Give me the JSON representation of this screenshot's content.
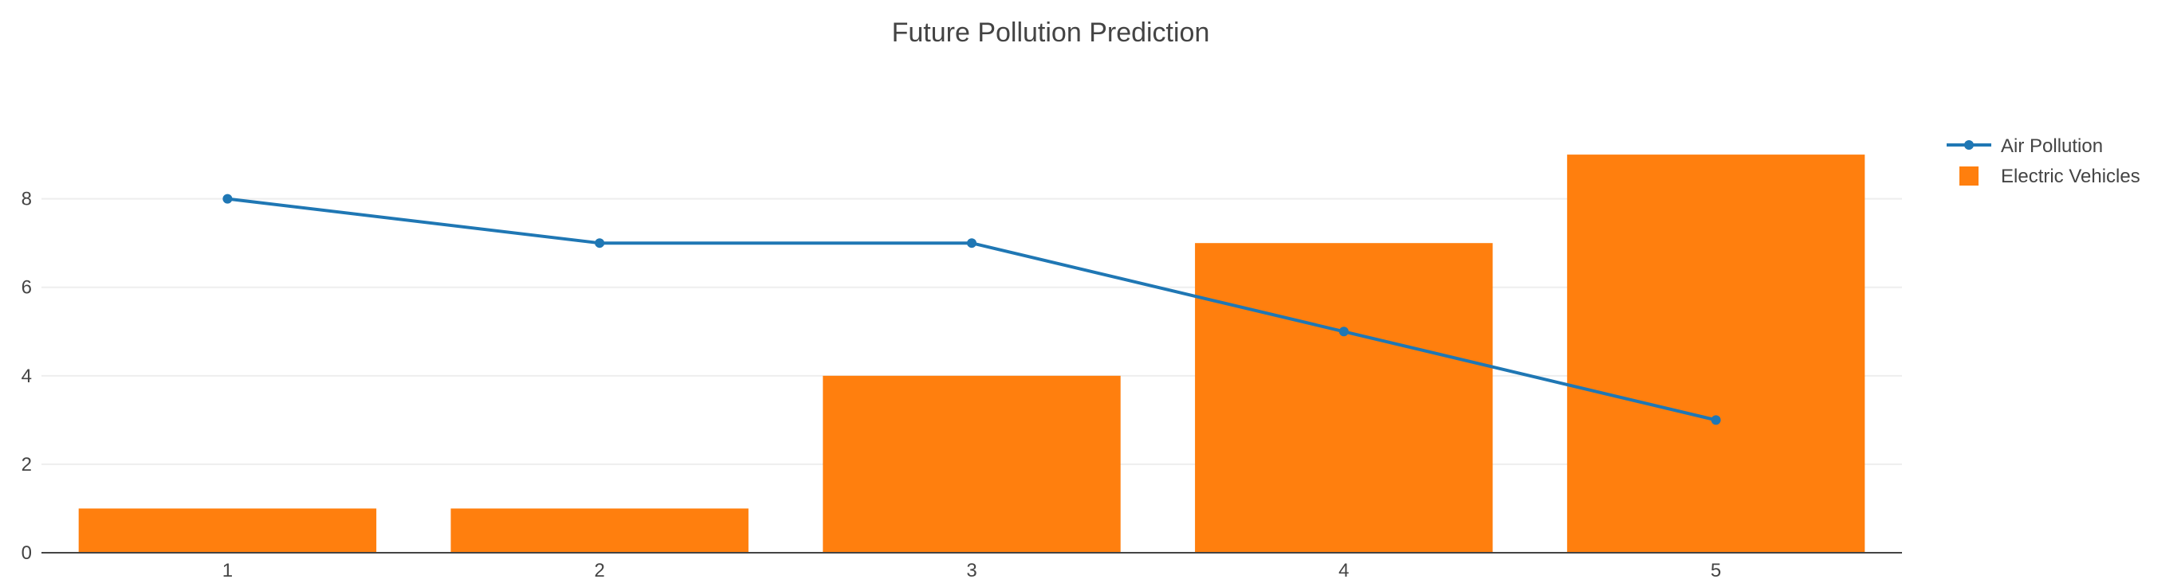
{
  "chart_data": {
    "type": "bar",
    "title": "Future Pollution Prediction",
    "xlabel": "",
    "ylabel": "",
    "x": [
      1,
      2,
      3,
      4,
      5
    ],
    "x_tick_labels": [
      "1",
      "2",
      "3",
      "4",
      "5"
    ],
    "y_ticks": [
      0,
      2,
      4,
      6,
      8
    ],
    "y_tick_labels": [
      "0",
      "2",
      "4",
      "6",
      "8"
    ],
    "ylim": [
      0,
      9.47
    ],
    "xlim": [
      0.5,
      5.5
    ],
    "grid": true,
    "legend_position": "top-right",
    "series": [
      {
        "name": "Air Pollution",
        "type": "line",
        "markers": true,
        "color": "#1f77b4",
        "values": [
          8,
          7,
          7,
          5,
          3
        ]
      },
      {
        "name": "Electric Vehicles",
        "type": "bar",
        "color": "#ff7f0e",
        "values": [
          1,
          1,
          4,
          7,
          9
        ]
      }
    ]
  }
}
